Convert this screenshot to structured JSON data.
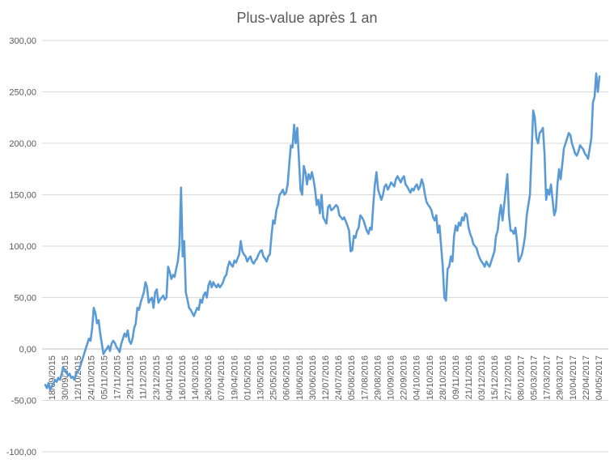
{
  "chart_data": {
    "type": "line",
    "title": "Plus-value après 1 an",
    "xlabel": "",
    "ylabel": "",
    "ylim": [
      -100,
      300
    ],
    "y_ticks": [
      "300,00",
      "250,00",
      "200,00",
      "150,00",
      "100,00",
      "50,00",
      "0,00",
      "-50,00",
      "-100,00"
    ],
    "y_tick_values": [
      300,
      250,
      200,
      150,
      100,
      50,
      0,
      -50,
      -100
    ],
    "x_ticks": [
      "18/09/2015",
      "30/09/2015",
      "12/10/2015",
      "24/10/2015",
      "05/11/2015",
      "17/11/2015",
      "29/11/2015",
      "11/12/2015",
      "23/12/2015",
      "04/01/2016",
      "16/01/2016",
      "14/03/2016",
      "26/03/2016",
      "07/04/2016",
      "19/04/2016",
      "01/05/2016",
      "13/05/2016",
      "25/05/2016",
      "06/06/2016",
      "18/06/2016",
      "30/06/2016",
      "12/07/2016",
      "24/07/2016",
      "05/08/2016",
      "17/08/2016",
      "29/08/2016",
      "10/09/2016",
      "22/09/2016",
      "04/10/2016",
      "16/10/2016",
      "28/10/2016",
      "09/11/2016",
      "21/11/2016",
      "03/12/2016",
      "15/12/2016",
      "27/12/2016",
      "08/01/2017",
      "05/03/2017",
      "17/03/2017",
      "29/03/2017",
      "10/04/2017",
      "22/04/2017",
      "04/05/2017"
    ],
    "grid": true,
    "legend": "none",
    "color": "#5b9bd5",
    "series": [
      {
        "values": [
          -35,
          -38,
          -33,
          -40,
          -36,
          -34,
          -30,
          -32,
          -28,
          -30,
          -25,
          -18,
          -20,
          -22,
          -26,
          -24,
          -28,
          -27,
          -30,
          -25,
          -22,
          -20,
          -15,
          -10,
          -5,
          0,
          5,
          10,
          8,
          20,
          40,
          35,
          25,
          28,
          15,
          5,
          -5,
          -2,
          0,
          3,
          -2,
          5,
          8,
          6,
          2,
          0,
          -3,
          5,
          10,
          15,
          12,
          18,
          8,
          5,
          10,
          20,
          25,
          40,
          38,
          45,
          50,
          55,
          65,
          60,
          45,
          48,
          50,
          40,
          55,
          58,
          45,
          48,
          50,
          52,
          48,
          50,
          80,
          75,
          68,
          72,
          70,
          78,
          85,
          100,
          157,
          90,
          105,
          55,
          48,
          40,
          38,
          35,
          32,
          36,
          40,
          38,
          48,
          45,
          52,
          55,
          50,
          62,
          66,
          60,
          65,
          62,
          60,
          63,
          60,
          62,
          65,
          70,
          72,
          80,
          85,
          82,
          80,
          86,
          84,
          88,
          92,
          105,
          95,
          92,
          90,
          85,
          88,
          90,
          85,
          83,
          86,
          88,
          92,
          95,
          96,
          90,
          88,
          85,
          90,
          92,
          110,
          125,
          122,
          135,
          140,
          150,
          152,
          155,
          150,
          152,
          160,
          180,
          198,
          196,
          218,
          200,
          215,
          185,
          155,
          150,
          178,
          172,
          160,
          170,
          165,
          172,
          165,
          155,
          140,
          145,
          132,
          150,
          128,
          125,
          122,
          138,
          140,
          135,
          136,
          138,
          140,
          138,
          130,
          128,
          126,
          128,
          124,
          120,
          115,
          95,
          96,
          110,
          108,
          115,
          118,
          130,
          128,
          125,
          120,
          115,
          112,
          118,
          116,
          140,
          160,
          172,
          155,
          150,
          145,
          150,
          158,
          160,
          155,
          158,
          162,
          160,
          158,
          165,
          168,
          165,
          162,
          166,
          168,
          160,
          158,
          155,
          152,
          156,
          154,
          158,
          160,
          155,
          158,
          165,
          160,
          150,
          143,
          140,
          138,
          135,
          128,
          125,
          130,
          113,
          120,
          100,
          80,
          50,
          47,
          78,
          80,
          90,
          85,
          110,
          120,
          115,
          123,
          120,
          128,
          125,
          132,
          130,
          118,
          112,
          108,
          102,
          100,
          98,
          92,
          88,
          85,
          83,
          80,
          85,
          82,
          80,
          85,
          90,
          95,
          110,
          115,
          130,
          140,
          125,
          140,
          155,
          170,
          130,
          115,
          115,
          112,
          118,
          105,
          85,
          88,
          92,
          100,
          110,
          130,
          140,
          150,
          190,
          232,
          225,
          205,
          200,
          210,
          212,
          215,
          190,
          145,
          155,
          150,
          160,
          145,
          130,
          135,
          160,
          175,
          165,
          180,
          195,
          200,
          205,
          210,
          208,
          200,
          195,
          190,
          188,
          192,
          198,
          196,
          194,
          190,
          188,
          185,
          195,
          205,
          240,
          245,
          268,
          250,
          265
        ]
      }
    ]
  }
}
